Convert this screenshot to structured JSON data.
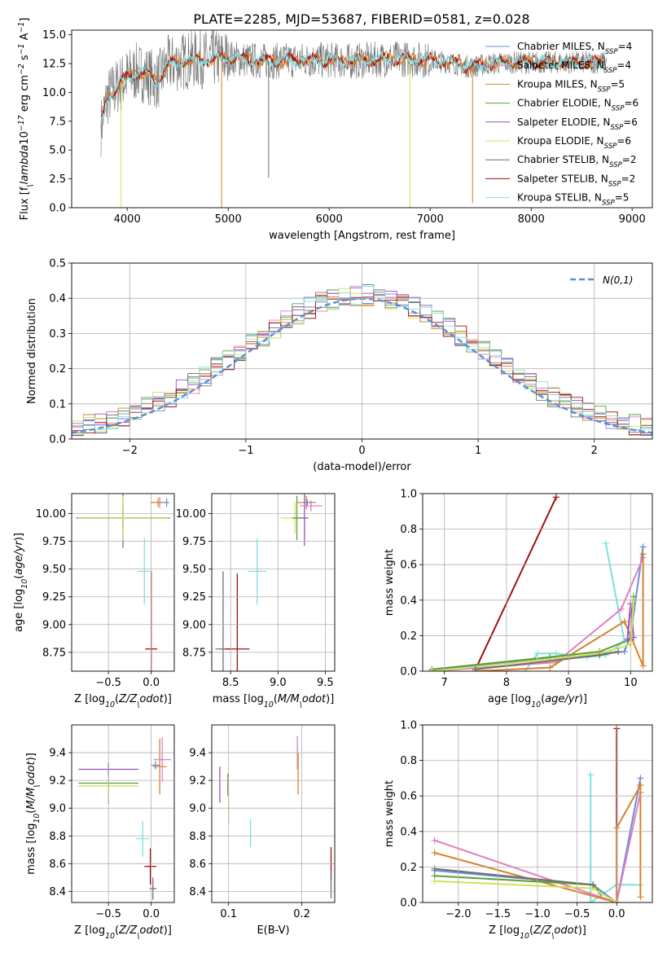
{
  "figure": {
    "title": "PLATE=2285, MJD=53687, FIBERID=0581, z=0.028"
  },
  "colors": {
    "chabrier_miles": "#6b8fd6",
    "salpeter_miles": "#e07fc0",
    "kroupa_miles": "#d9822b",
    "chabrier_elodie": "#5a9e3a",
    "salpeter_elodie": "#9b4fc0",
    "kroupa_elodie": "#d4e05a",
    "chabrier_stelib": "#707070",
    "salpeter_stelib": "#a01010",
    "kroupa_stelib": "#80e0e0",
    "normal": "#5b8fd6"
  },
  "chart_data": [
    {
      "id": "spectrum",
      "type": "line",
      "xlabel": "wavelength [Angstrom, rest frame]",
      "ylabel": "Flux [f$_\\lambda$10$^{-17}$ erg cm$^{-2}$ s$^{-1}$ A$^{-1}$]",
      "xlim": [
        3450,
        9200
      ],
      "ylim": [
        0,
        15.4
      ],
      "xticks": [
        4000,
        5000,
        6000,
        7000,
        8000,
        9000
      ],
      "yticks": [
        0.0,
        2.5,
        5.0,
        7.5,
        10.0,
        12.5,
        15.0
      ],
      "ytick_labels": [
        "0.0",
        "2.5",
        "5.0",
        "7.5",
        "10.0",
        "12.5",
        "15.0"
      ],
      "legend_position": "top-right",
      "legend": [
        {
          "label": "Chabrier MILES, N",
          "sub": "SSP",
          "suffix": "=4",
          "color_key": "chabrier_miles"
        },
        {
          "label": "Salpeter MILES, N",
          "sub": "SSP",
          "suffix": "=4",
          "color_key": "salpeter_miles"
        },
        {
          "label": "Kroupa MILES, N",
          "sub": "SSP",
          "suffix": "=5",
          "color_key": "kroupa_miles"
        },
        {
          "label": "Chabrier ELODIE, N",
          "sub": "SSP",
          "suffix": "=6",
          "color_key": "chabrier_elodie"
        },
        {
          "label": "Salpeter ELODIE, N",
          "sub": "SSP",
          "suffix": "=6",
          "color_key": "salpeter_elodie"
        },
        {
          "label": "Kroupa ELODIE, N",
          "sub": "SSP",
          "suffix": "=6",
          "color_key": "kroupa_elodie"
        },
        {
          "label": "Chabrier STELIB, N",
          "sub": "SSP",
          "suffix": "=2",
          "color_key": "chabrier_stelib"
        },
        {
          "label": "Salpeter STELIB, N",
          "sub": "SSP",
          "suffix": "=2",
          "color_key": "salpeter_stelib"
        },
        {
          "label": "Kroupa STELIB, N",
          "sub": "SSP",
          "suffix": "=5",
          "color_key": "kroupa_stelib"
        }
      ],
      "data_trend": {
        "x": [
          3740,
          3800,
          3900,
          4000,
          4100,
          4200,
          4300,
          4400,
          4600,
          4800,
          5000,
          5200,
          5400,
          5600,
          5800,
          6000,
          6200,
          6400,
          6600,
          6800,
          7000,
          7200,
          7400,
          7600,
          7800
        ],
        "y": [
          7.0,
          9.5,
          10.5,
          11.3,
          11.8,
          11.5,
          11.0,
          12.4,
          12.8,
          12.9,
          13.0,
          12.8,
          12.7,
          12.8,
          12.8,
          12.8,
          12.7,
          12.8,
          12.9,
          12.9,
          12.8,
          12.6,
          12.2,
          12.5,
          12.6
        ]
      },
      "spikes": [
        {
          "x": 3940,
          "ymin": 0.0,
          "color_key": "kroupa_elodie"
        },
        {
          "x": 4935,
          "ymin": 0.0,
          "color_key": "kroupa_miles"
        },
        {
          "x": 5400,
          "ymin": 2.6,
          "color_key": "chabrier_stelib"
        },
        {
          "x": 6800,
          "ymin": 0.0,
          "color_key": "kroupa_elodie"
        },
        {
          "x": 7420,
          "ymin": 0.4,
          "color_key": "kroupa_miles"
        }
      ]
    },
    {
      "id": "residual_hist",
      "type": "line",
      "xlabel": "(data-model)/error",
      "ylabel": "Normed distribution",
      "xlim": [
        -2.5,
        2.5
      ],
      "ylim": [
        0,
        0.5
      ],
      "xticks": [
        -2,
        -1,
        0,
        1,
        2
      ],
      "xtick_labels": [
        "−2",
        "−1",
        "0",
        "1",
        "2"
      ],
      "yticks": [
        0.0,
        0.1,
        0.2,
        0.3,
        0.4,
        0.5
      ],
      "ytick_labels": [
        "0.0",
        "0.1",
        "0.2",
        "0.3",
        "0.4",
        "0.5"
      ],
      "grid": true,
      "legend_position": "top-right",
      "normal_legend": "$\\mathcal{N}(0,1)$",
      "bin_width": 0.1
    },
    {
      "id": "age_vs_Z",
      "type": "scatter",
      "xlabel": "Z [log$_{10}$($Z/Z_\\odot$)]",
      "ylabel": "age  [log$_{10}$($age/yr$)]",
      "xlim": [
        -0.93,
        0.27
      ],
      "ylim": [
        8.58,
        10.18
      ],
      "xticks": [
        -0.5,
        0.0
      ],
      "xtick_labels": [
        "−0.5",
        "0.0"
      ],
      "yticks": [
        8.75,
        9.0,
        9.25,
        9.5,
        9.75,
        10.0
      ],
      "ytick_labels": [
        "8.75",
        "9.00",
        "9.25",
        "9.50",
        "9.75",
        "10.00"
      ],
      "grid": true,
      "points": [
        {
          "x": 0.0,
          "y": 8.78,
          "xerr": 0.07,
          "yerr": 0.7,
          "color_key": "salpeter_stelib"
        },
        {
          "x": -0.08,
          "y": 9.48,
          "xerr": 0.08,
          "yerr": 0.3,
          "color_key": "kroupa_stelib"
        },
        {
          "x": -0.33,
          "y": 9.96,
          "xerr": 0.55,
          "yerr": 0.1,
          "color_key": "chabrier_elodie"
        },
        {
          "x": -0.33,
          "y": 9.96,
          "xerr": 0.5,
          "yerr": 0.27,
          "color_key": "salpeter_elodie"
        },
        {
          "x": -0.33,
          "y": 9.96,
          "xerr": 0.52,
          "yerr": 0.2,
          "color_key": "kroupa_elodie"
        },
        {
          "x": 0.1,
          "y": 10.1,
          "xerr": 0.1,
          "yerr": 0.05,
          "color_key": "salpeter_miles"
        },
        {
          "x": 0.08,
          "y": 10.1,
          "xerr": 0.09,
          "yerr": 0.04,
          "color_key": "kroupa_miles"
        },
        {
          "x": 0.18,
          "y": 10.1,
          "xerr": 0.03,
          "yerr": 0.04,
          "color_key": "chabrier_miles"
        }
      ]
    },
    {
      "id": "age_vs_mass",
      "type": "scatter",
      "xlabel": "mass [log$_{10}$($M/M_\\odot$)]",
      "ylabel": "",
      "xlim": [
        8.3,
        9.6
      ],
      "ylim": [
        8.58,
        10.18
      ],
      "xticks": [
        8.5,
        9.0,
        9.5
      ],
      "xtick_labels": [
        "8.5",
        "9.0",
        "9.5"
      ],
      "yticks": [
        8.75,
        9.0,
        9.25,
        9.5,
        9.75,
        10.0
      ],
      "ytick_labels": [
        "8.75",
        "9.00",
        "9.25",
        "9.50",
        "9.75",
        "10.00"
      ],
      "grid": true,
      "points": [
        {
          "x": 8.42,
          "y": 8.78,
          "xerr": 0.08,
          "yerr": 0.7,
          "color_key": "chabrier_stelib"
        },
        {
          "x": 8.57,
          "y": 8.78,
          "xerr": 0.13,
          "yerr": 0.68,
          "color_key": "salpeter_stelib"
        },
        {
          "x": 8.78,
          "y": 9.48,
          "xerr": 0.1,
          "yerr": 0.3,
          "color_key": "kroupa_stelib"
        },
        {
          "x": 9.18,
          "y": 9.96,
          "xerr": 0.15,
          "yerr": 0.14,
          "color_key": "kroupa_elodie"
        },
        {
          "x": 9.2,
          "y": 9.96,
          "xerr": 0.05,
          "yerr": 0.2,
          "color_key": "chabrier_elodie"
        },
        {
          "x": 9.28,
          "y": 9.96,
          "xerr": 0.04,
          "yerr": 0.25,
          "color_key": "salpeter_elodie"
        },
        {
          "x": 9.3,
          "y": 10.1,
          "xerr": 0.1,
          "yerr": 0.06,
          "color_key": "kroupa_miles"
        },
        {
          "x": 9.35,
          "y": 10.07,
          "xerr": 0.12,
          "yerr": 0.05,
          "color_key": "salpeter_miles"
        },
        {
          "x": 9.31,
          "y": 10.1,
          "xerr": 0.04,
          "yerr": 0.03,
          "color_key": "chabrier_miles"
        }
      ]
    },
    {
      "id": "weight_vs_age",
      "type": "line",
      "xlabel": "age  [log$_{10}$($age/yr$)]",
      "ylabel": "mass weight",
      "xlim": [
        6.65,
        10.35
      ],
      "ylim": [
        0,
        1.0
      ],
      "xticks": [
        7,
        8,
        9,
        10
      ],
      "yticks": [
        0.0,
        0.2,
        0.4,
        0.6,
        0.8,
        1.0
      ],
      "ytick_labels": [
        "0.0",
        "0.2",
        "0.4",
        "0.6",
        "0.8",
        "1.0"
      ],
      "grid": true,
      "series": [
        {
          "color_key": "salpeter_stelib",
          "x": [
            7.5,
            8.8
          ],
          "y": [
            0.01,
            0.98
          ]
        },
        {
          "color_key": "kroupa_stelib",
          "x": [
            8.3,
            8.5,
            8.8,
            9.3,
            9.6,
            9.9,
            9.6
          ],
          "y": [
            0.0,
            0.1,
            0.1,
            0.08,
            0.09,
            0.17,
            0.72
          ]
        },
        {
          "color_key": "chabrier_miles",
          "x": [
            6.8,
            9.0,
            9.9,
            10.0,
            10.2
          ],
          "y": [
            0.01,
            0.08,
            0.11,
            0.2,
            0.7
          ]
        },
        {
          "color_key": "salpeter_miles",
          "x": [
            6.8,
            8.8,
            9.85,
            10.2
          ],
          "y": [
            0.0,
            0.05,
            0.35,
            0.64
          ]
        },
        {
          "color_key": "kroupa_miles",
          "x": [
            7.5,
            8.7,
            9.9,
            10.0,
            10.2,
            10.2
          ],
          "y": [
            0.0,
            0.02,
            0.28,
            0.2,
            0.03,
            0.66
          ]
        },
        {
          "color_key": "chabrier_elodie",
          "x": [
            6.8,
            8.7,
            9.5,
            10.0,
            10.05
          ],
          "y": [
            0.01,
            0.08,
            0.11,
            0.18,
            0.42
          ]
        },
        {
          "color_key": "salpeter_elodie",
          "x": [
            9.95,
            10.0,
            10.05
          ],
          "y": [
            0.18,
            0.38,
            0.19
          ]
        },
        {
          "color_key": "kroupa_elodie",
          "x": [
            6.8,
            8.5,
            9.5,
            10.0,
            10.05
          ],
          "y": [
            0.0,
            0.06,
            0.1,
            0.15,
            0.4
          ]
        },
        {
          "color_key": "chabrier_stelib",
          "x": [
            7.5,
            9.5,
            9.8
          ],
          "y": [
            0.01,
            0.09,
            0.11
          ]
        }
      ]
    },
    {
      "id": "mass_vs_Z",
      "type": "scatter",
      "xlabel": "Z [log$_{10}$($Z/Z_\\odot$)]",
      "ylabel": "mass [log$_{10}$($M/M_\\odot$)]",
      "xlim": [
        -0.93,
        0.27
      ],
      "ylim": [
        8.32,
        9.6
      ],
      "xticks": [
        -0.5,
        0.0
      ],
      "xtick_labels": [
        "−0.5",
        "0.0"
      ],
      "yticks": [
        8.4,
        8.6,
        8.8,
        9.0,
        9.2,
        9.4
      ],
      "ytick_labels": [
        "8.4",
        "8.6",
        "8.8",
        "9.0",
        "9.2",
        "9.4"
      ],
      "grid": true,
      "points": [
        {
          "x": 0.02,
          "y": 8.42,
          "xerr": 0.04,
          "yerr": 0.08,
          "color_key": "chabrier_stelib"
        },
        {
          "x": -0.01,
          "y": 8.58,
          "xerr": 0.07,
          "yerr": 0.13,
          "color_key": "salpeter_stelib"
        },
        {
          "x": -0.1,
          "y": 8.78,
          "xerr": 0.08,
          "yerr": 0.13,
          "color_key": "kroupa_stelib"
        },
        {
          "x": -0.5,
          "y": 9.18,
          "xerr": 0.35,
          "yerr": 0.15,
          "color_key": "chabrier_elodie"
        },
        {
          "x": -0.5,
          "y": 9.16,
          "xerr": 0.35,
          "yerr": 0.12,
          "color_key": "kroupa_elodie"
        },
        {
          "x": -0.5,
          "y": 9.28,
          "xerr": 0.35,
          "yerr": 0.04,
          "color_key": "salpeter_elodie"
        },
        {
          "x": 0.1,
          "y": 9.3,
          "xerr": 0.08,
          "yerr": 0.2,
          "color_key": "kroupa_miles"
        },
        {
          "x": 0.13,
          "y": 9.35,
          "xerr": 0.1,
          "yerr": 0.16,
          "color_key": "salpeter_miles"
        },
        {
          "x": 0.05,
          "y": 9.31,
          "xerr": 0.05,
          "yerr": 0.03,
          "color_key": "chabrier_miles"
        }
      ]
    },
    {
      "id": "mass_vs_EBV",
      "type": "scatter",
      "xlabel": "E(B-V)",
      "ylabel": "",
      "xlim": [
        0.077,
        0.245
      ],
      "ylim": [
        8.32,
        9.6
      ],
      "xticks": [
        0.1,
        0.2
      ],
      "xtick_labels": [
        "0.1",
        "0.2"
      ],
      "yticks": [
        8.4,
        8.6,
        8.8,
        9.0,
        9.2,
        9.4
      ],
      "ytick_labels": [
        "8.4",
        "8.6",
        "8.8",
        "9.0",
        "9.2",
        "9.4"
      ],
      "grid": true,
      "points": [
        {
          "x": 0.088,
          "y": 9.17,
          "xerr": 0.0,
          "yerr": 0.13,
          "color_key": "salpeter_elodie"
        },
        {
          "x": 0.099,
          "y": 9.17,
          "xerr": 0.0,
          "yerr": 0.08,
          "color_key": "chabrier_elodie"
        },
        {
          "x": 0.1,
          "y": 9.02,
          "xerr": 0.0,
          "yerr": 0.13,
          "color_key": "kroupa_elodie"
        },
        {
          "x": 0.13,
          "y": 8.82,
          "xerr": 0.0,
          "yerr": 0.1,
          "color_key": "kroupa_stelib"
        },
        {
          "x": 0.194,
          "y": 9.4,
          "xerr": 0.0,
          "yerr": 0.12,
          "color_key": "salpeter_miles"
        },
        {
          "x": 0.195,
          "y": 9.25,
          "xerr": 0.0,
          "yerr": 0.15,
          "color_key": "kroupa_miles"
        },
        {
          "x": 0.24,
          "y": 8.6,
          "xerr": 0.0,
          "yerr": 0.12,
          "color_key": "salpeter_stelib"
        },
        {
          "x": 0.24,
          "y": 8.45,
          "xerr": 0.0,
          "yerr": 0.1,
          "color_key": "chabrier_stelib"
        }
      ]
    },
    {
      "id": "weight_vs_Z",
      "type": "line",
      "xlabel": "Z [log$_{10}$($Z/Z_\\odot$)]",
      "ylabel": "mass weight",
      "xlim": [
        -2.45,
        0.45
      ],
      "ylim": [
        0,
        1.0
      ],
      "xticks": [
        -2.0,
        -1.5,
        -1.0,
        -0.5,
        0.0
      ],
      "xtick_labels": [
        "−2.0",
        "−1.5",
        "−1.0",
        "−0.5",
        "0.0"
      ],
      "yticks": [
        0.0,
        0.2,
        0.4,
        0.6,
        0.8,
        1.0
      ],
      "ytick_labels": [
        "0.0",
        "0.2",
        "0.4",
        "0.6",
        "0.8",
        "1.0"
      ],
      "grid": true,
      "series": [
        {
          "color_key": "salpeter_stelib",
          "x": [
            0.0,
            0.0
          ],
          "y": [
            0.0,
            0.98
          ]
        },
        {
          "color_key": "kroupa_stelib",
          "x": [
            -0.33,
            -0.33,
            0.0,
            0.3
          ],
          "y": [
            0.72,
            0.0,
            0.1,
            0.1
          ]
        },
        {
          "color_key": "chabrier_miles",
          "x": [
            -2.3,
            -0.3,
            0.0,
            0.3
          ],
          "y": [
            0.18,
            0.1,
            0.0,
            0.7
          ]
        },
        {
          "color_key": "salpeter_miles",
          "x": [
            -2.3,
            0.0,
            0.3
          ],
          "y": [
            0.35,
            0.0,
            0.62
          ]
        },
        {
          "color_key": "kroupa_miles",
          "x": [
            -2.3,
            0.0,
            0.0,
            0.3,
            0.3
          ],
          "y": [
            0.28,
            0.0,
            0.42,
            0.66,
            0.03
          ]
        },
        {
          "color_key": "chabrier_elodie",
          "x": [
            -2.3,
            -0.3,
            -0.2
          ],
          "y": [
            0.15,
            0.1,
            0.05
          ]
        },
        {
          "color_key": "kroupa_elodie",
          "x": [
            -2.3,
            -0.3,
            0.0
          ],
          "y": [
            0.12,
            0.08,
            0.0
          ]
        },
        {
          "color_key": "chabrier_stelib",
          "x": [
            -2.3,
            -0.3
          ],
          "y": [
            0.19,
            0.1
          ]
        }
      ]
    }
  ]
}
